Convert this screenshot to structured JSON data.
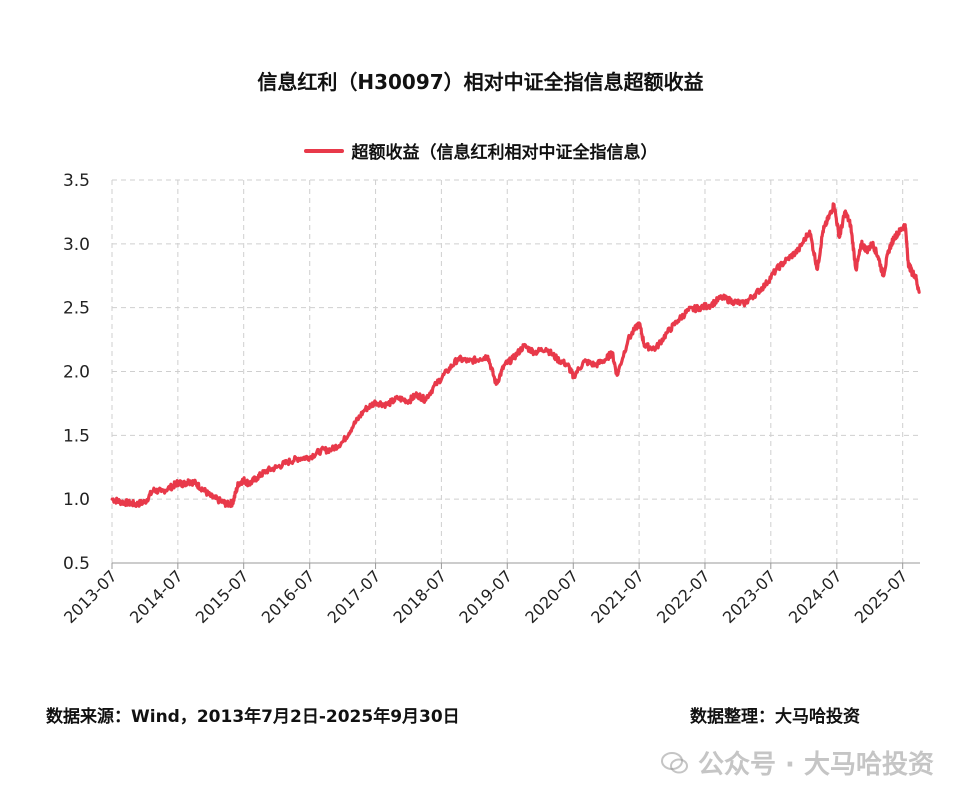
{
  "chart_data": {
    "type": "line",
    "title": "信息红利（H30097）相对中证全指信息超额收益",
    "series": [
      {
        "name": "超额收益（信息红利相对中证全指信息）",
        "color": "#e8394a",
        "points": [
          [
            "2013-07-02",
            1.0
          ],
          [
            "2013-08-15",
            0.98
          ],
          [
            "2013-10-01",
            0.97
          ],
          [
            "2013-11-15",
            0.96
          ],
          [
            "2014-01-01",
            0.98
          ],
          [
            "2014-02-15",
            1.07
          ],
          [
            "2014-04-01",
            1.06
          ],
          [
            "2014-06-01",
            1.1
          ],
          [
            "2014-07-01",
            1.13
          ],
          [
            "2014-08-01",
            1.12
          ],
          [
            "2014-09-01",
            1.14
          ],
          [
            "2014-10-01",
            1.13
          ],
          [
            "2014-11-15",
            1.08
          ],
          [
            "2015-01-01",
            1.02
          ],
          [
            "2015-02-15",
            0.99
          ],
          [
            "2015-04-01",
            0.96
          ],
          [
            "2015-05-01",
            0.97
          ],
          [
            "2015-06-01",
            1.12
          ],
          [
            "2015-07-01",
            1.15
          ],
          [
            "2015-08-01",
            1.12
          ],
          [
            "2015-09-15",
            1.17
          ],
          [
            "2015-11-01",
            1.22
          ],
          [
            "2016-01-01",
            1.25
          ],
          [
            "2016-03-01",
            1.29
          ],
          [
            "2016-05-01",
            1.32
          ],
          [
            "2016-07-01",
            1.33
          ],
          [
            "2016-09-01",
            1.38
          ],
          [
            "2016-11-01",
            1.39
          ],
          [
            "2017-01-01",
            1.45
          ],
          [
            "2017-03-01",
            1.58
          ],
          [
            "2017-05-01",
            1.7
          ],
          [
            "2017-07-01",
            1.76
          ],
          [
            "2017-09-01",
            1.74
          ],
          [
            "2017-11-01",
            1.79
          ],
          [
            "2018-01-01",
            1.77
          ],
          [
            "2018-02-15",
            1.82
          ],
          [
            "2018-04-01",
            1.78
          ],
          [
            "2018-06-01",
            1.9
          ],
          [
            "2018-08-01",
            2.0
          ],
          [
            "2018-10-01",
            2.1
          ],
          [
            "2018-12-01",
            2.08
          ],
          [
            "2019-02-01",
            2.1
          ],
          [
            "2019-03-15",
            2.12
          ],
          [
            "2019-05-01",
            1.9
          ],
          [
            "2019-06-15",
            2.05
          ],
          [
            "2019-08-01",
            2.1
          ],
          [
            "2019-10-01",
            2.2
          ],
          [
            "2019-12-01",
            2.15
          ],
          [
            "2020-02-01",
            2.18
          ],
          [
            "2020-04-01",
            2.1
          ],
          [
            "2020-06-01",
            2.05
          ],
          [
            "2020-07-01",
            1.96
          ],
          [
            "2020-09-01",
            2.08
          ],
          [
            "2020-11-01",
            2.05
          ],
          [
            "2021-01-01",
            2.1
          ],
          [
            "2021-02-01",
            2.15
          ],
          [
            "2021-03-01",
            1.97
          ],
          [
            "2021-05-01",
            2.25
          ],
          [
            "2021-07-01",
            2.38
          ],
          [
            "2021-08-01",
            2.2
          ],
          [
            "2021-10-01",
            2.18
          ],
          [
            "2021-12-01",
            2.3
          ],
          [
            "2022-02-01",
            2.4
          ],
          [
            "2022-04-01",
            2.48
          ],
          [
            "2022-06-01",
            2.5
          ],
          [
            "2022-08-01",
            2.52
          ],
          [
            "2022-10-01",
            2.58
          ],
          [
            "2022-12-01",
            2.55
          ],
          [
            "2023-02-01",
            2.53
          ],
          [
            "2023-04-01",
            2.6
          ],
          [
            "2023-06-01",
            2.68
          ],
          [
            "2023-08-01",
            2.8
          ],
          [
            "2023-10-01",
            2.88
          ],
          [
            "2023-12-01",
            2.95
          ],
          [
            "2024-02-01",
            3.1
          ],
          [
            "2024-03-15",
            2.8
          ],
          [
            "2024-04-15",
            3.1
          ],
          [
            "2024-05-15",
            3.2
          ],
          [
            "2024-06-15",
            3.31
          ],
          [
            "2024-07-15",
            3.05
          ],
          [
            "2024-08-15",
            3.25
          ],
          [
            "2024-09-15",
            3.15
          ],
          [
            "2024-10-15",
            2.8
          ],
          [
            "2024-11-15",
            3.0
          ],
          [
            "2024-12-15",
            2.95
          ],
          [
            "2025-01-15",
            3.0
          ],
          [
            "2025-02-15",
            2.9
          ],
          [
            "2025-03-15",
            2.75
          ],
          [
            "2025-04-15",
            2.95
          ],
          [
            "2025-05-15",
            3.05
          ],
          [
            "2025-06-15",
            3.1
          ],
          [
            "2025-07-15",
            3.15
          ],
          [
            "2025-08-01",
            2.85
          ],
          [
            "2025-08-20",
            2.78
          ],
          [
            "2025-09-10",
            2.75
          ],
          [
            "2025-09-30",
            2.62
          ]
        ]
      }
    ],
    "x_ticks": [
      "2013-07",
      "2014-07",
      "2015-07",
      "2016-07",
      "2017-07",
      "2018-07",
      "2019-07",
      "2020-07",
      "2021-07",
      "2022-07",
      "2023-07",
      "2024-07",
      "2025-07"
    ],
    "y_ticks": [
      "0.5",
      "1.0",
      "1.5",
      "2.0",
      "2.5",
      "3.0",
      "3.5"
    ],
    "ylim": [
      0.5,
      3.5
    ],
    "xlim": [
      "2013-07-01",
      "2025-10-05"
    ],
    "grid": true,
    "legend_position": "top-center"
  },
  "footer": {
    "source": "数据来源：Wind，2013年7月2日-2025年9月30日",
    "compiler": "数据整理：大马哈投资"
  },
  "watermark": {
    "text": "公众号 · 大马哈投资",
    "icon": "wechat-icon"
  }
}
